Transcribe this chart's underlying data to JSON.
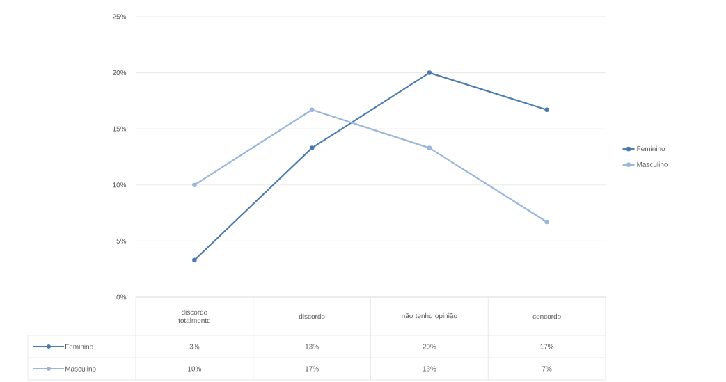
{
  "chart_data": {
    "type": "line",
    "categories": [
      "discordo totalmente",
      "discordo",
      "não tenho opinião",
      "concordo"
    ],
    "series": [
      {
        "name": "Feminino",
        "color": "#4a7ab0",
        "values": [
          3.3,
          13.3,
          20,
          16.7
        ],
        "value_labels": [
          "3%",
          "13%",
          "20%",
          "17%"
        ]
      },
      {
        "name": "Masculino",
        "color": "#9ab6db",
        "values": [
          10,
          16.7,
          13.3,
          6.7
        ],
        "value_labels": [
          "10%",
          "17%",
          "13%",
          "7%"
        ]
      }
    ],
    "ylim": [
      0,
      25
    ],
    "yticks": [
      {
        "value": 0,
        "label": "0%"
      },
      {
        "value": 5,
        "label": "5%"
      },
      {
        "value": 10,
        "label": "10%"
      },
      {
        "value": 15,
        "label": "15%"
      },
      {
        "value": 20,
        "label": "20%"
      },
      {
        "value": 25,
        "label": "25%"
      }
    ],
    "grid": "y",
    "legend": "right",
    "marker": "circle",
    "line_style": "solid"
  }
}
